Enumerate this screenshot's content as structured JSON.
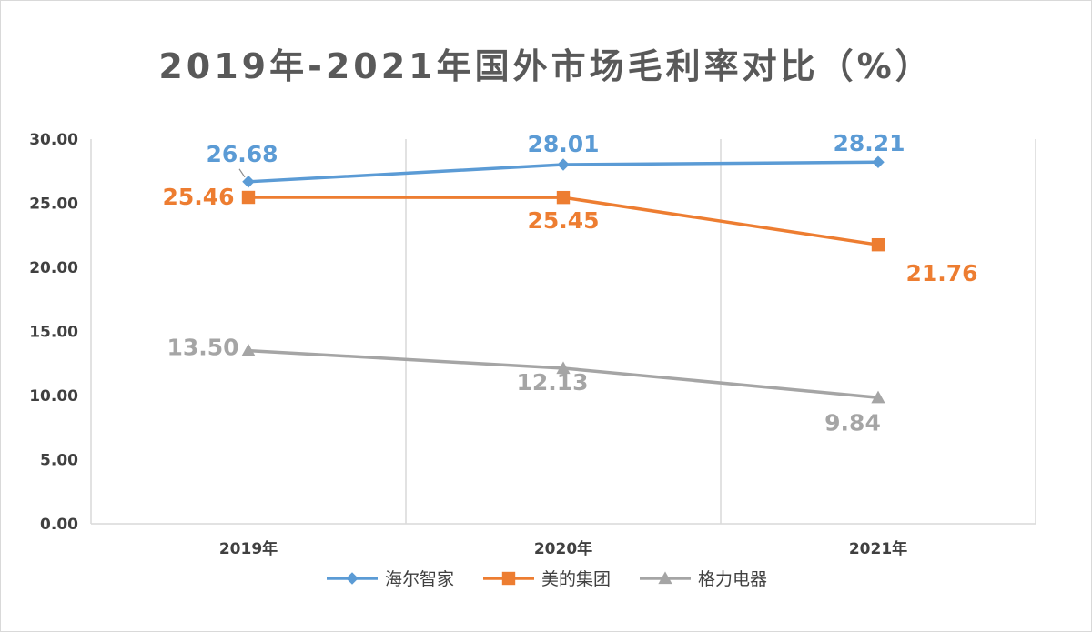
{
  "chart_data": {
    "type": "line",
    "title": "2019年-2021年国外市场毛利率对比（%）",
    "xlabel": "",
    "ylabel": "",
    "categories": [
      "2019年",
      "2020年",
      "2021年"
    ],
    "ylim": [
      0,
      30
    ],
    "yticks": [
      "0.00",
      "5.00",
      "10.00",
      "15.00",
      "20.00",
      "25.00",
      "30.00"
    ],
    "grid": "vertical",
    "legend_position": "bottom",
    "series": [
      {
        "name": "海尔智家",
        "values": [
          26.68,
          28.01,
          28.21
        ],
        "labels": [
          "26.68",
          "28.01",
          "28.21"
        ],
        "color": "#5b9bd5",
        "marker": "diamond"
      },
      {
        "name": "美的集团",
        "values": [
          25.46,
          25.45,
          21.76
        ],
        "labels": [
          "25.46",
          "25.45",
          "21.76"
        ],
        "color": "#ed7d31",
        "marker": "square"
      },
      {
        "name": "格力电器",
        "values": [
          13.5,
          12.13,
          9.84
        ],
        "labels": [
          "13.50",
          "12.13",
          "9.84"
        ],
        "color": "#a5a5a5",
        "marker": "triangle"
      }
    ]
  }
}
